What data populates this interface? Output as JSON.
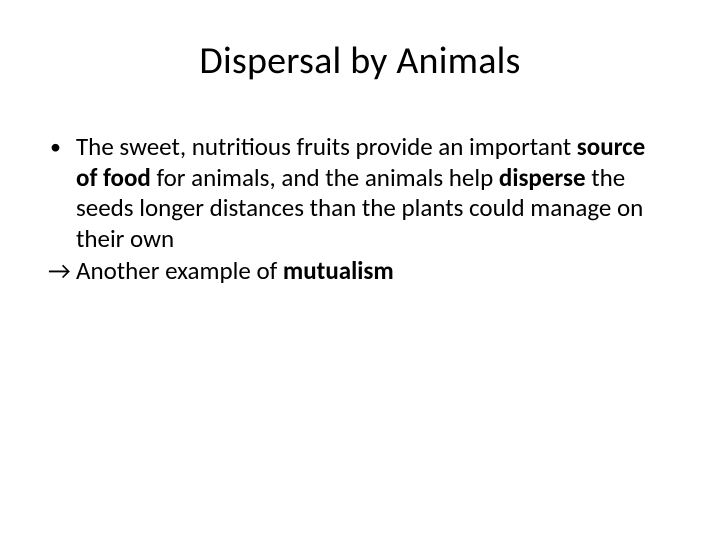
{
  "slide": {
    "title": "Dispersal by Animals",
    "bullet": {
      "marker": "•",
      "seg1": "The sweet, nutritious fruits provide an important ",
      "bold1": "source of food ",
      "seg2": "for animals, and the animals help ",
      "bold2": "disperse ",
      "seg3": "the seeds longer distances than the plants could manage on their own"
    },
    "arrow": {
      "marker": "→",
      "seg1": " Another example of ",
      "bold1": "mutualism"
    }
  },
  "style": {
    "background_color": "#ffffff",
    "text_color": "#000000",
    "title_fontsize": 38,
    "body_fontsize": 25,
    "font_family": "Calibri"
  }
}
